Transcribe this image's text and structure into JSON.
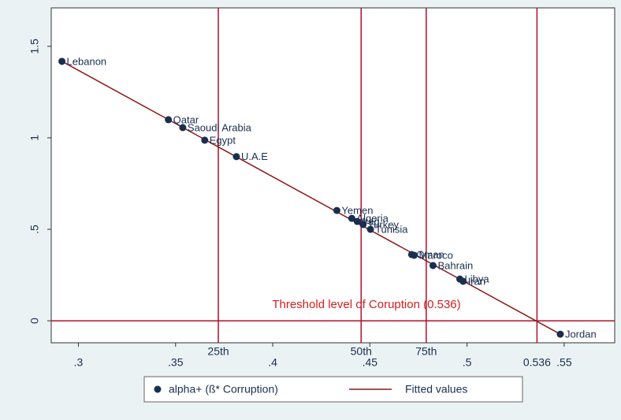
{
  "chart_data": {
    "type": "scatter",
    "series": [
      {
        "name": "alpha+ (ß* Corruption)",
        "color": "#1a2f4f",
        "x": [
          0.2915,
          0.3463,
          0.3537,
          0.365,
          0.3813,
          0.433,
          0.4407,
          0.4435,
          0.4465,
          0.4503,
          0.4715,
          0.4728,
          0.4825,
          0.4963,
          0.498,
          0.548
        ],
        "values": [
          1.418,
          1.099,
          1.056,
          0.987,
          0.897,
          0.603,
          0.56,
          0.543,
          0.526,
          0.5,
          0.362,
          0.358,
          0.302,
          0.228,
          0.216,
          -0.073
        ],
        "point_labels": [
          "Lebanon",
          "Qatar",
          "Saoudi Arabia",
          "Egypt",
          "U.A.E",
          "Yemen",
          "Algeria",
          "Iraq",
          "Turkey",
          "Tunisia",
          "Oman",
          "Maroco",
          "Bahrain",
          "Libya",
          "Iran",
          "Jordan"
        ]
      },
      {
        "name": "Fitted values",
        "type": "line",
        "color": "#8b1a1a",
        "x": [
          0.2915,
          0.548
        ],
        "values": [
          1.418,
          -0.073
        ]
      }
    ],
    "reference_lines_x": [
      {
        "value": 0.372,
        "label": "25th"
      },
      {
        "value": 0.4455,
        "label": "50th"
      },
      {
        "value": 0.479,
        "label": "75th"
      },
      {
        "value": 0.536,
        "label": "0.536"
      }
    ],
    "reference_line_y": {
      "value": 0,
      "label": "Threshold level of Coruption (0.536)"
    },
    "reference_color": "#b0102a",
    "xlim": [
      0.286,
      0.576
    ],
    "ylim": [
      -0.12,
      1.71
    ],
    "xticks": [
      {
        "value": 0.3,
        "label": ".3"
      },
      {
        "value": 0.35,
        "label": ".35"
      },
      {
        "value": 0.4,
        "label": ".4"
      },
      {
        "value": 0.45,
        "label": ".45"
      },
      {
        "value": 0.5,
        "label": ".5"
      },
      {
        "value": 0.55,
        "label": ".55"
      }
    ],
    "yticks": [
      0,
      {
        "value": 0.5,
        "label": ".5"
      },
      1,
      1.5
    ],
    "legend": "bottom"
  }
}
